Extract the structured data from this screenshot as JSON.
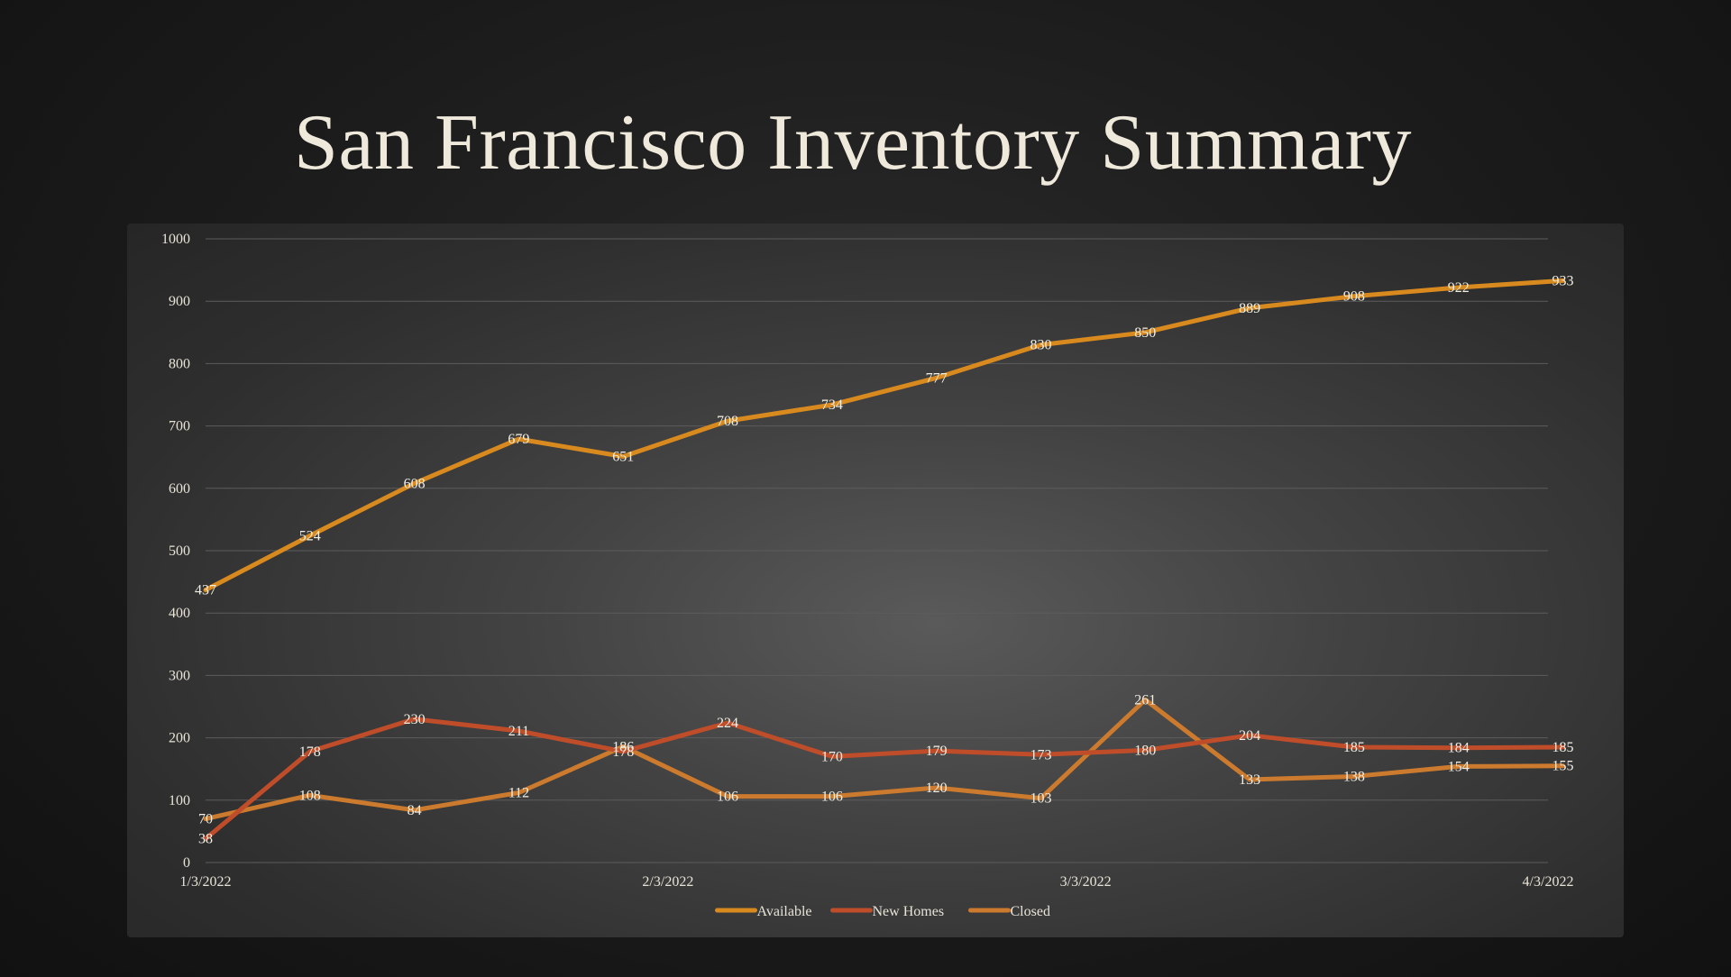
{
  "slide": {
    "title": "San Francisco Inventory Summary"
  },
  "colors": {
    "Available": "#d98a1f",
    "New Homes": "#c04d2a",
    "Closed": "#cc7a2e",
    "gridline": "#5c5c5c",
    "text": "#e9e4d8"
  },
  "chart_data": {
    "type": "line",
    "title": "",
    "xlabel": "",
    "ylabel": "",
    "ylim": [
      0,
      1000
    ],
    "y_ticks": [
      0,
      100,
      200,
      300,
      400,
      500,
      600,
      700,
      800,
      900,
      1000
    ],
    "x": [
      "1/3/2022",
      "1/10/2022",
      "1/17/2022",
      "1/24/2022",
      "1/31/2022",
      "2/7/2022",
      "2/14/2022",
      "2/21/2022",
      "2/28/2022",
      "3/7/2022",
      "3/14/2022",
      "3/21/2022",
      "3/28/2022",
      "4/4/2022"
    ],
    "x_tick_labels": [
      {
        "label": "1/3/2022",
        "x": "1/3/2022"
      },
      {
        "label": "2/3/2022",
        "x": "2/3/2022"
      },
      {
        "label": "3/3/2022",
        "x": "3/3/2022"
      },
      {
        "label": "4/3/2022",
        "x": "4/3/2022"
      }
    ],
    "grid": true,
    "legend_position": "bottom",
    "series": [
      {
        "name": "Available",
        "values": [
          437,
          524,
          608,
          679,
          651,
          708,
          734,
          777,
          830,
          850,
          889,
          908,
          922,
          933
        ]
      },
      {
        "name": "New Homes",
        "values": [
          38,
          178,
          230,
          211,
          178,
          224,
          170,
          179,
          173,
          180,
          204,
          185,
          184,
          185
        ]
      },
      {
        "name": "Closed",
        "values": [
          70,
          108,
          84,
          112,
          186,
          106,
          106,
          120,
          103,
          261,
          133,
          138,
          154,
          155
        ]
      }
    ]
  }
}
